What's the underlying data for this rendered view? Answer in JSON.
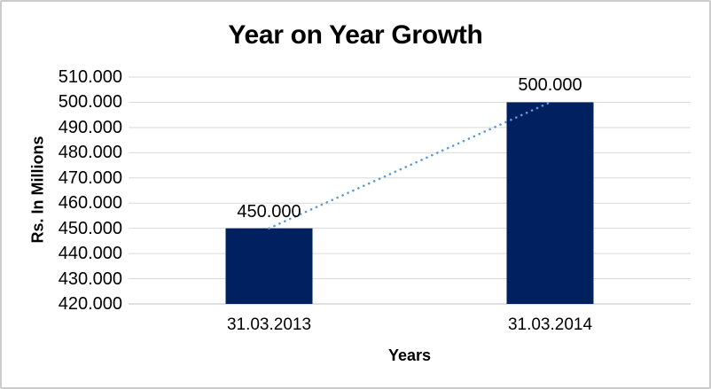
{
  "window": {
    "background": "#ffffff",
    "border_color": "#cccccc"
  },
  "chart_data": {
    "type": "bar",
    "title": "Year on Year Growth",
    "xlabel": "Years",
    "ylabel": "Rs. In Millions",
    "categories": [
      "31.03.2013",
      "31.03.2014"
    ],
    "values": [
      450000,
      500000
    ],
    "data_labels": [
      "450.000",
      "500.000"
    ],
    "yticks": [
      510000,
      500000,
      490000,
      480000,
      470000,
      460000,
      450000,
      440000,
      430000,
      420000
    ],
    "ytick_labels": [
      "510.000",
      "500.000",
      "490.000",
      "480.000",
      "470.000",
      "460.000",
      "450.000",
      "440.000",
      "430.000",
      "420.000"
    ],
    "ylim": [
      420000,
      510000
    ],
    "grid": true,
    "legend": "none",
    "bar_color": "#002060",
    "gridline_color": "#d9d9d9",
    "axis_line_color": "#d6d6d6",
    "trendline": {
      "type": "linear",
      "style": "dotted",
      "color": "#5b9bd5",
      "points": [
        450000,
        500000
      ]
    }
  }
}
